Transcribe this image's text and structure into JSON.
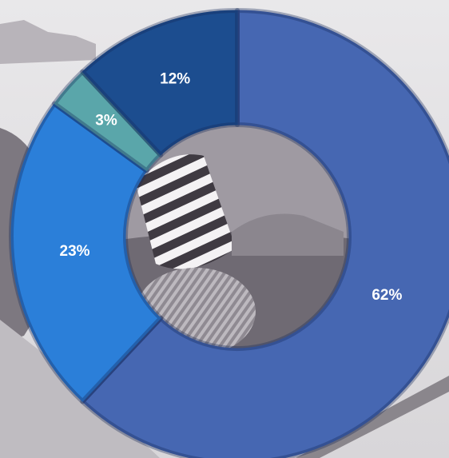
{
  "chart_data": {
    "type": "pie",
    "donut": true,
    "title": "",
    "slices": [
      {
        "label": "62%",
        "value": 62,
        "color": "#4667b2"
      },
      {
        "label": "23%",
        "value": 23,
        "color": "#2b7fd9"
      },
      {
        "label": "3%",
        "value": 3,
        "color": "#5aa6aa"
      },
      {
        "label": "12%",
        "value": 12,
        "color": "#1c4d8f"
      }
    ],
    "legend": "none"
  },
  "background": {
    "description_color": "#8c8790"
  }
}
